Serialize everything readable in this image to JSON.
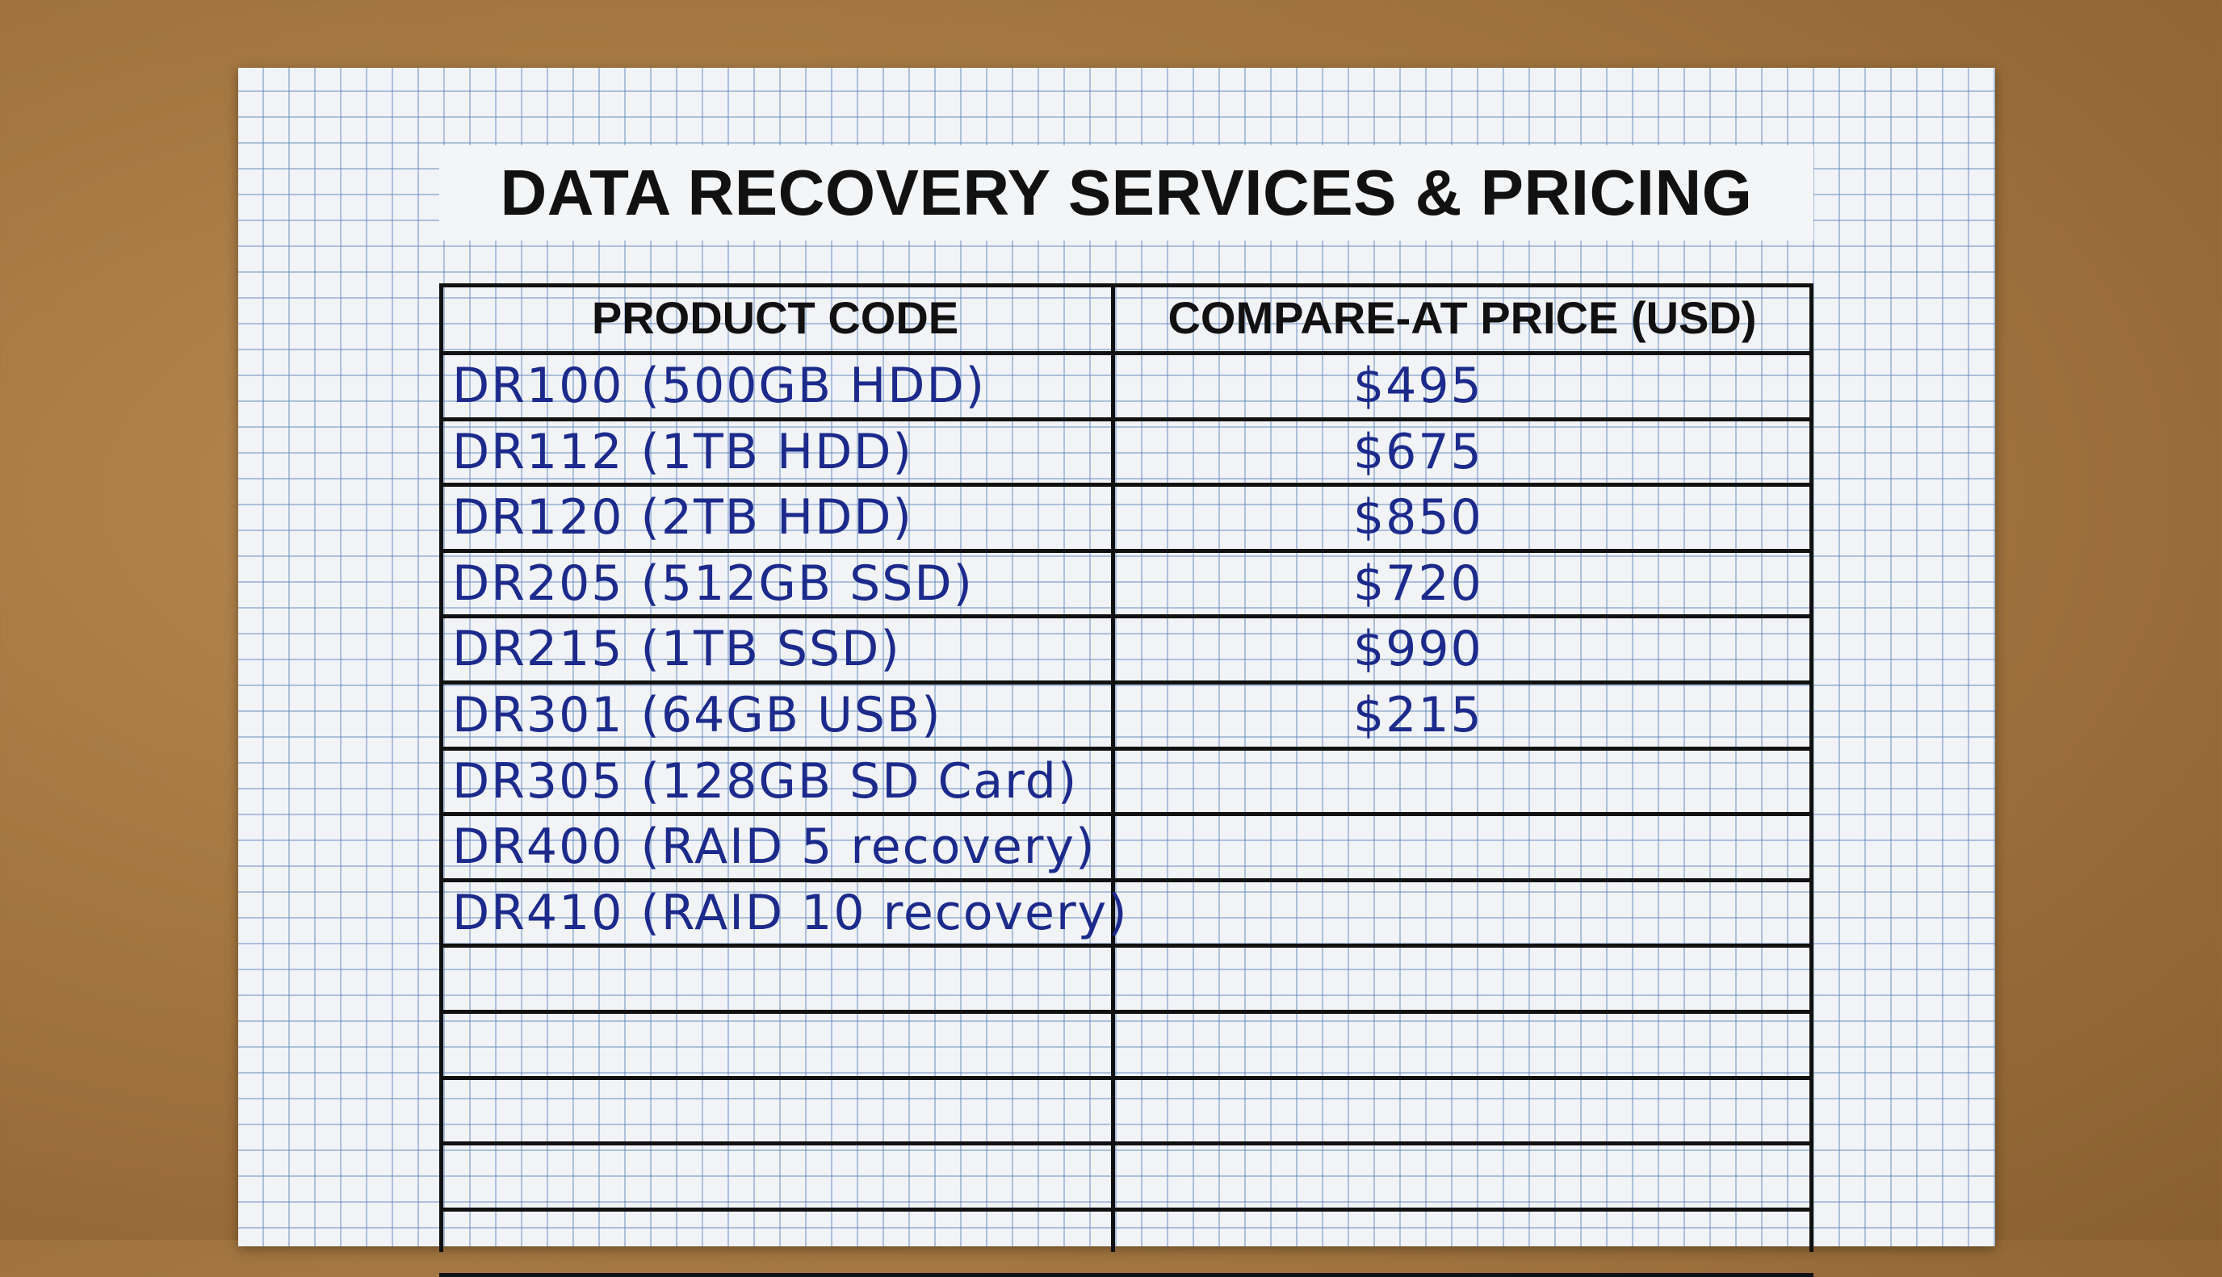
{
  "title": "DATA RECOVERY SERVICES & PRICING",
  "table": {
    "headers": [
      "PRODUCT CODE",
      "COMPARE-AT PRICE (USD)"
    ],
    "rows": [
      [
        "DR100 (500GB HDD)",
        "$495"
      ],
      [
        "DR112 (1TB HDD)",
        "$675"
      ],
      [
        "DR120 (2TB HDD)",
        "$850"
      ],
      [
        "DR205 (512GB SSD)",
        "$720"
      ],
      [
        "DR215 (1TB SSD)",
        "$990"
      ],
      [
        "DR301 (64GB USB)",
        "$215"
      ],
      [
        "DR305 (128GB SD Card)"
      ],
      [
        "DR400 (RAID 5 recovery)"
      ],
      [
        "DR410 (RAID 10 recovery)"
      ]
    ]
  }
}
